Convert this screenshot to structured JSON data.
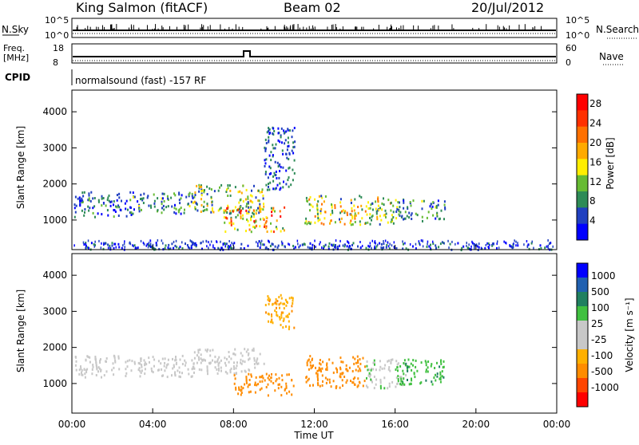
{
  "header": {
    "station": "King Salmon (fitACF)",
    "beam": "Beam 02",
    "date": "20/Jul/2012"
  },
  "noise_panel": {
    "left_label": "N.Sky",
    "right_label": "N.Search",
    "ticks_left": [
      "10^5",
      "10^0"
    ],
    "ticks_right": [
      "10^5",
      "10^0"
    ]
  },
  "freq_panel": {
    "left_label_line1": "Freq.",
    "left_label_line2": "[MHz]",
    "ticks_left": [
      "18",
      "8"
    ],
    "right_label": "Nave",
    "ticks_right": [
      "60",
      "0"
    ]
  },
  "cpid_panel": {
    "label": "CPID",
    "text": "normalsound (fast) -157 RF"
  },
  "colors": {
    "scale": [
      "#0000ff",
      "#2040c0",
      "#2e8b57",
      "#66bb33",
      "#ffee00",
      "#ffaa00",
      "#ff7000",
      "#ff3000",
      "#ff0000"
    ],
    "velocity_scale": [
      "#ff0000",
      "#ff4500",
      "#ff8c00",
      "#ffb000",
      "#c8c8c8",
      "#c8c8c8",
      "#40c040",
      "#208060",
      "#2060b0",
      "#0000ff"
    ]
  },
  "chart_data": [
    {
      "type": "heatmap",
      "title": "Power",
      "ylabel": "Slant Range [km]",
      "xlabel": "",
      "ylim": [
        180,
        4600
      ],
      "yticks": [
        "1000",
        "2000",
        "3000",
        "4000"
      ],
      "colorbar_label": "Power [dB]",
      "colorbar_ticks": [
        "4",
        "8",
        "12",
        "16",
        "20",
        "24",
        "28"
      ],
      "colorbar_range": [
        0,
        30
      ],
      "regions": [
        {
          "x": [
            0.1,
            3.0
          ],
          "y": [
            1100,
            1800
          ],
          "value": 6
        },
        {
          "x": [
            3.0,
            6.0
          ],
          "y": [
            1200,
            1800
          ],
          "value": 8
        },
        {
          "x": [
            6.0,
            9.5
          ],
          "y": [
            1200,
            2000
          ],
          "value": 12
        },
        {
          "x": [
            7.5,
            10.5
          ],
          "y": [
            700,
            1400
          ],
          "value": 18
        },
        {
          "x": [
            9.5,
            11.0
          ],
          "y": [
            1800,
            3600
          ],
          "value": 5
        },
        {
          "x": [
            11.5,
            16.0
          ],
          "y": [
            900,
            1700
          ],
          "value": 14
        },
        {
          "x": [
            16.0,
            18.5
          ],
          "y": [
            1000,
            1600
          ],
          "value": 8
        },
        {
          "x": [
            0.0,
            24.0
          ],
          "y": [
            200,
            400
          ],
          "value": 5
        }
      ]
    },
    {
      "type": "heatmap",
      "title": "Velocity",
      "ylabel": "Slant Range [km]",
      "xlabel": "Time UT",
      "ylim": [
        180,
        4600
      ],
      "yticks": [
        "1000",
        "2000",
        "3000",
        "4000"
      ],
      "xticks": [
        "00:00",
        "04:00",
        "08:00",
        "12:00",
        "16:00",
        "20:00",
        "00:00"
      ],
      "xlim": [
        0,
        24
      ],
      "colorbar_label": "Velocity [m s⁻¹]",
      "colorbar_ticks": [
        "1000",
        "500",
        "100",
        "25",
        "-25",
        "-100",
        "-500",
        "-1000"
      ],
      "regions": [
        {
          "x": [
            0.1,
            6.0
          ],
          "y": [
            1200,
            1800
          ],
          "value": 0
        },
        {
          "x": [
            6.0,
            9.5
          ],
          "y": [
            1300,
            2000
          ],
          "value": 10
        },
        {
          "x": [
            8.0,
            11.0
          ],
          "y": [
            700,
            1300
          ],
          "value": -300
        },
        {
          "x": [
            11.5,
            14.5
          ],
          "y": [
            900,
            1800
          ],
          "value": -250
        },
        {
          "x": [
            14.5,
            16.5
          ],
          "y": [
            900,
            1700
          ],
          "value": 80
        },
        {
          "x": [
            16.0,
            18.5
          ],
          "y": [
            1000,
            1700
          ],
          "value": 400
        },
        {
          "x": [
            9.5,
            11.0
          ],
          "y": [
            2500,
            3500
          ],
          "value": -80
        }
      ]
    }
  ]
}
